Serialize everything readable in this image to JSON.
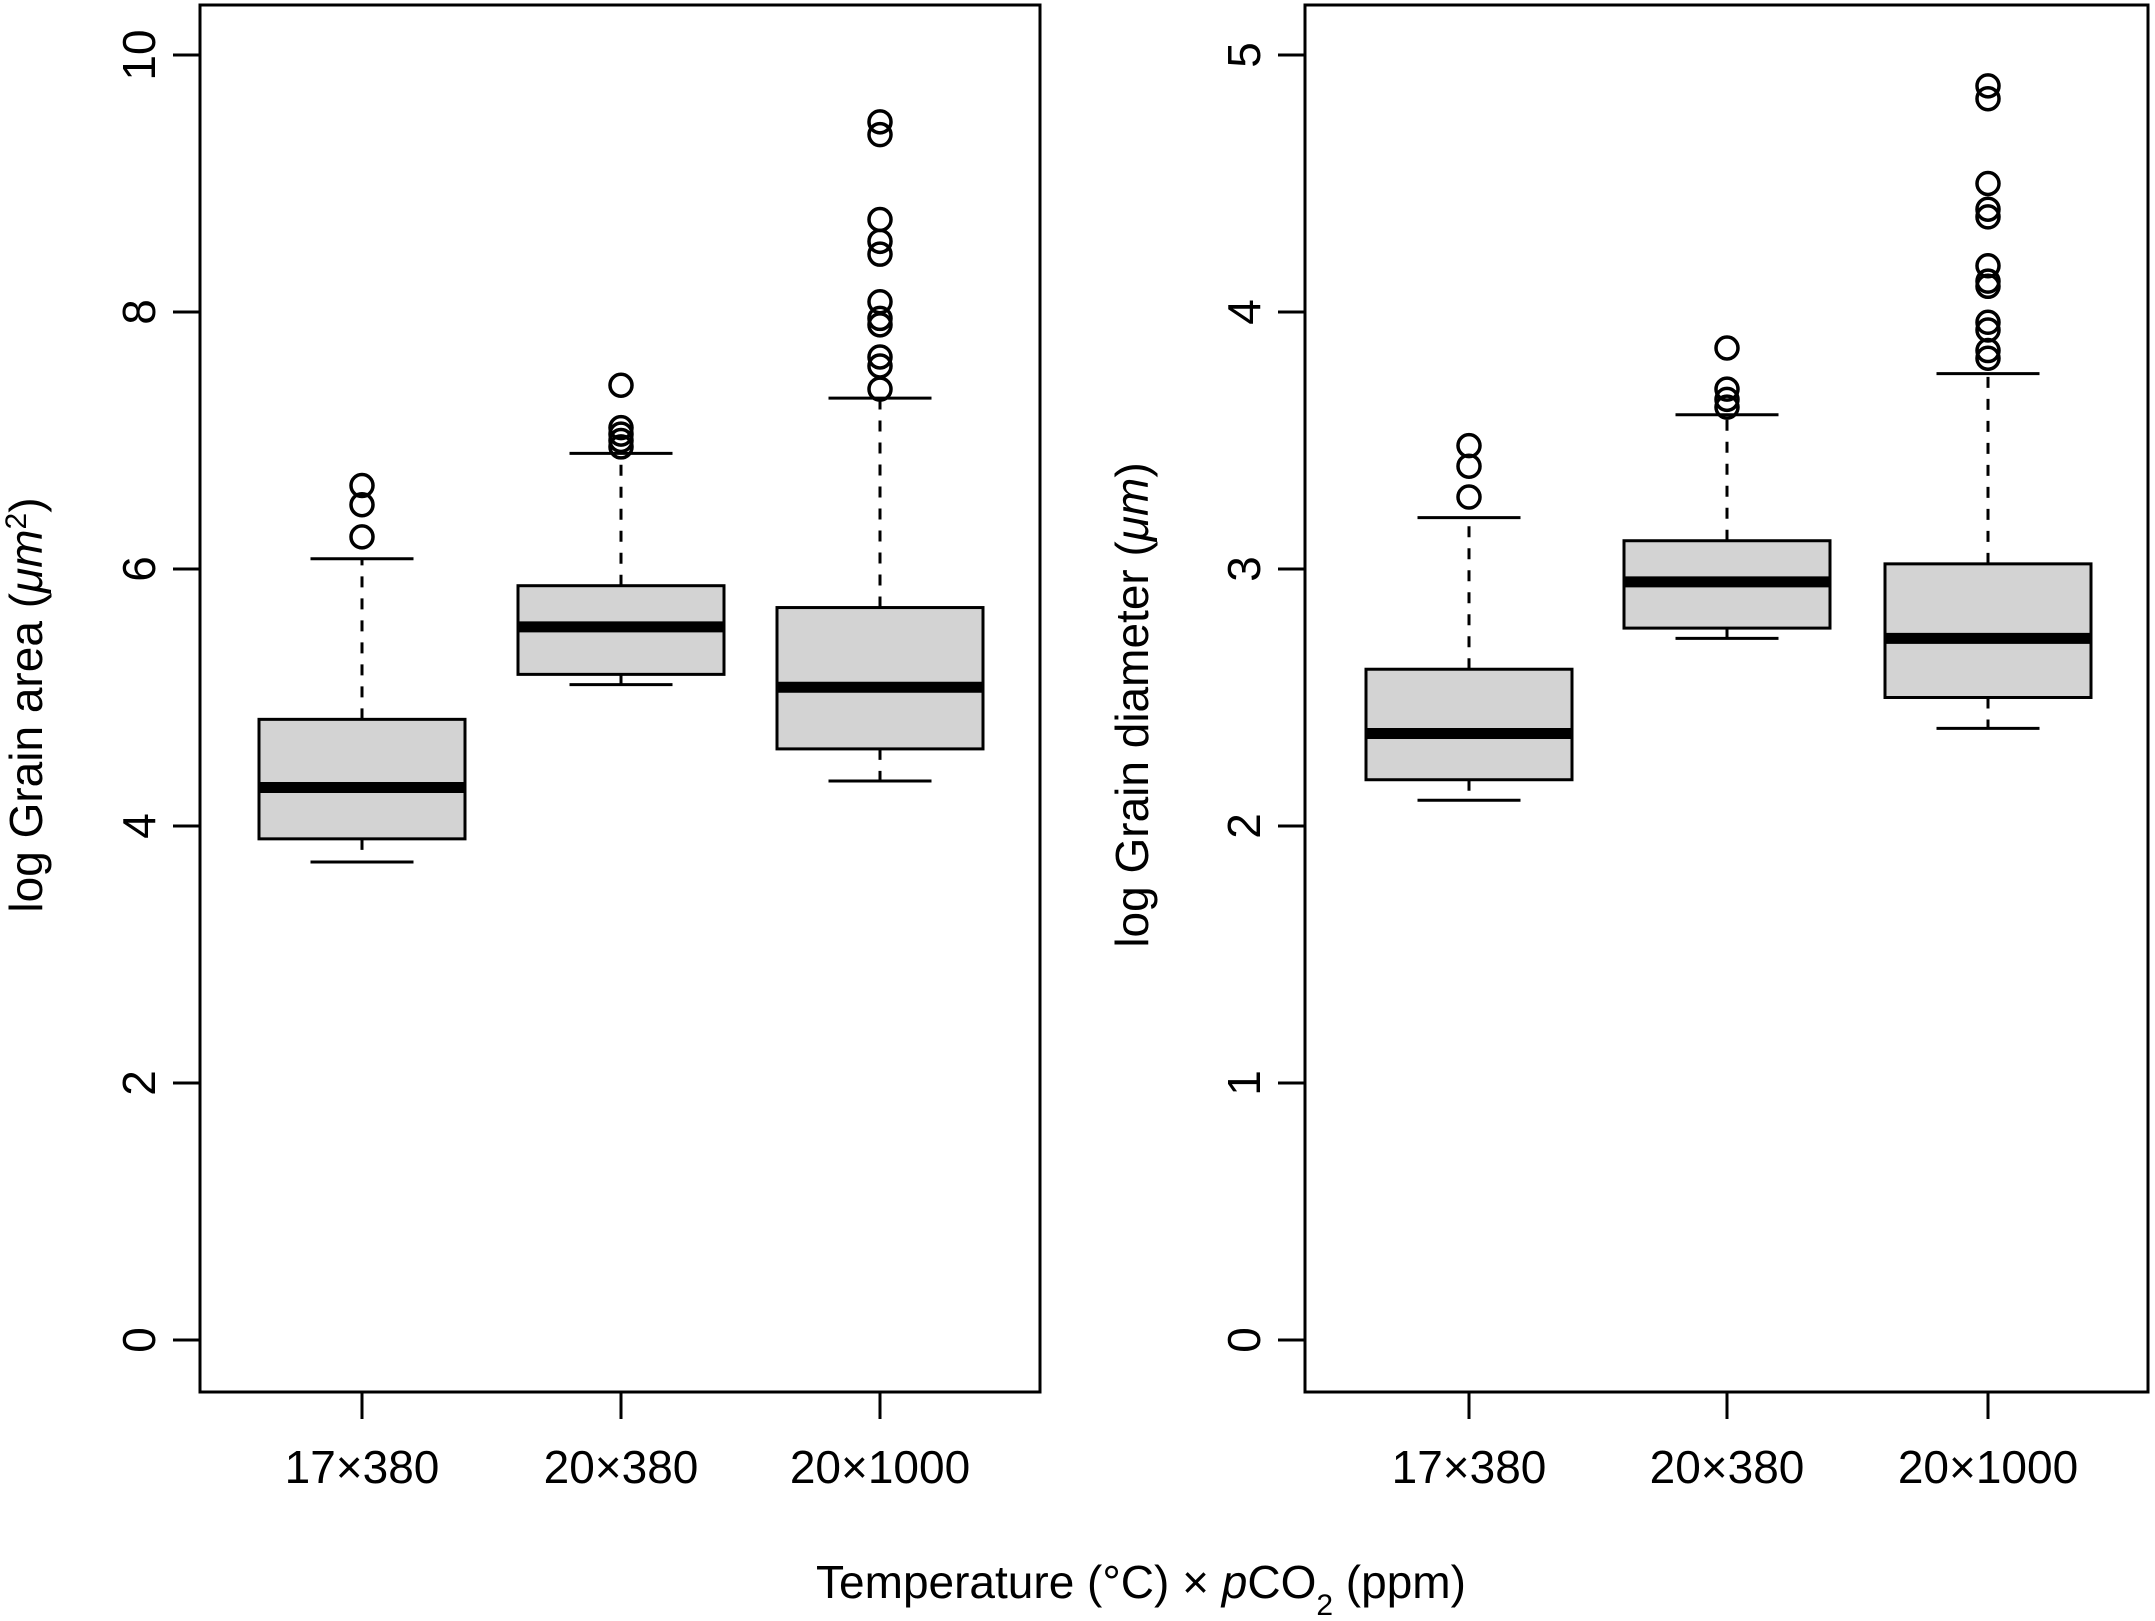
{
  "chart_data": [
    {
      "type": "boxplot",
      "panel": "left",
      "ylabel": {
        "prefix": "log Grain area (",
        "unit_italic": "μm",
        "superscript": "2",
        "suffix": ")"
      },
      "ylim": [
        0,
        10
      ],
      "yticks": [
        0,
        2,
        4,
        6,
        8,
        10
      ],
      "categories": [
        "17×380",
        "20×380",
        "20×1000"
      ],
      "boxes": [
        {
          "whisker_low": 3.72,
          "q1": 3.9,
          "median": 4.3,
          "q3": 4.83,
          "whisker_high": 6.08,
          "outliers": [
            6.25,
            6.5,
            6.65
          ]
        },
        {
          "whisker_low": 5.1,
          "q1": 5.18,
          "median": 5.55,
          "q3": 5.87,
          "whisker_high": 6.9,
          "outliers": [
            6.95,
            7.0,
            7.05,
            7.1,
            7.43
          ]
        },
        {
          "whisker_low": 4.35,
          "q1": 4.6,
          "median": 5.08,
          "q3": 5.7,
          "whisker_high": 7.33,
          "outliers": [
            7.4,
            7.58,
            7.65,
            7.9,
            7.95,
            8.08,
            8.45,
            8.55,
            8.72,
            9.38,
            9.48
          ]
        }
      ]
    },
    {
      "type": "boxplot",
      "panel": "right",
      "ylabel": {
        "prefix": "log Grain diameter (",
        "unit_italic": "μm",
        "superscript": "",
        "suffix": ")"
      },
      "ylim": [
        0,
        5
      ],
      "yticks": [
        0,
        1,
        2,
        3,
        4,
        5
      ],
      "categories": [
        "17×380",
        "20×380",
        "20×1000"
      ],
      "boxes": [
        {
          "whisker_low": 2.1,
          "q1": 2.18,
          "median": 2.36,
          "q3": 2.61,
          "whisker_high": 3.2,
          "outliers": [
            3.28,
            3.4,
            3.48
          ]
        },
        {
          "whisker_low": 2.73,
          "q1": 2.77,
          "median": 2.95,
          "q3": 3.11,
          "whisker_high": 3.6,
          "outliers": [
            3.63,
            3.66,
            3.7,
            3.86
          ]
        },
        {
          "whisker_low": 2.38,
          "q1": 2.5,
          "median": 2.73,
          "q3": 3.02,
          "whisker_high": 3.76,
          "outliers": [
            3.82,
            3.85,
            3.93,
            3.96,
            4.1,
            4.12,
            4.18,
            4.37,
            4.4,
            4.5,
            4.83,
            4.88
          ]
        }
      ]
    }
  ],
  "xlabel": {
    "before": "Temperature (°C) × ",
    "italic": "p",
    "co": "CO",
    "subscript": "2",
    "after": " (ppm)"
  }
}
